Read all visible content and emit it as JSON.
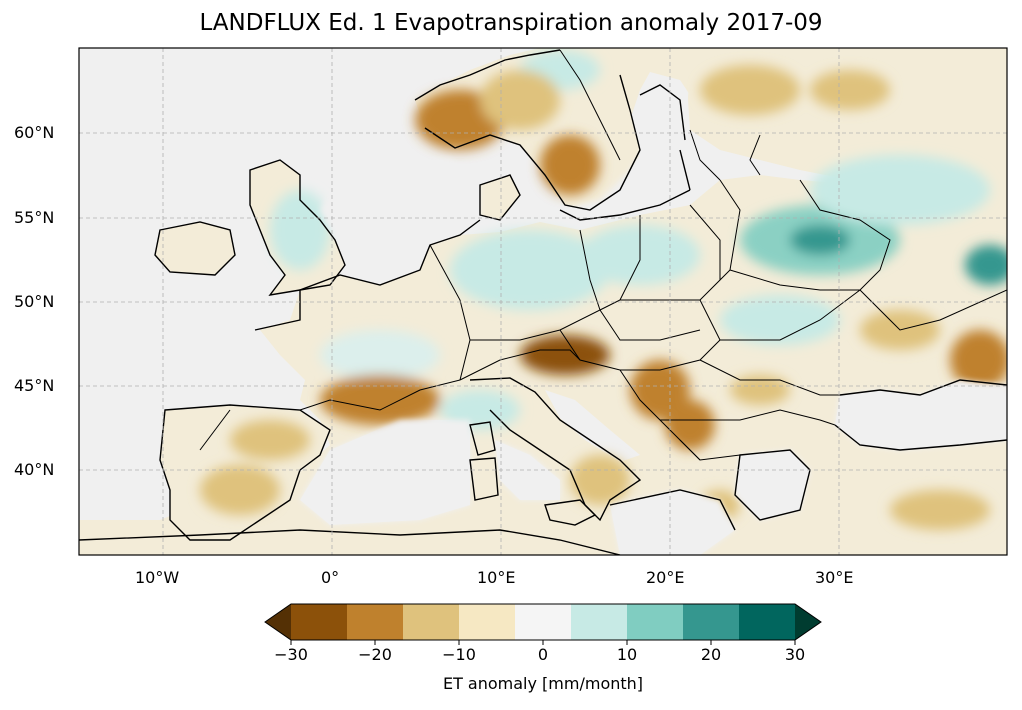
{
  "title": "LANDFLUX Ed. 1 Evapotranspiration anomaly 2017-09",
  "map": {
    "lon_ticks": [
      "10°W",
      "0°",
      "10°E",
      "20°E",
      "30°E"
    ],
    "lat_ticks": [
      "60°N",
      "55°N",
      "50°N",
      "45°N",
      "40°N"
    ]
  },
  "colorbar": {
    "label": "ET anomaly [mm/month]",
    "ticks": [
      "−30",
      "−20",
      "−10",
      "0",
      "10",
      "20",
      "30"
    ],
    "colors": [
      "#543005",
      "#8c510a",
      "#bf812d",
      "#dfc27d",
      "#f6e8c3",
      "#f5f5f5",
      "#c7eae5",
      "#80cdc1",
      "#35978f",
      "#01665e",
      "#003c30"
    ],
    "extend": "both"
  },
  "colors": {
    "ocean": "#f0f0f0",
    "land_base": "#f3ecd8",
    "coastline": "#000000",
    "gridline": "#b0b0b0"
  }
}
